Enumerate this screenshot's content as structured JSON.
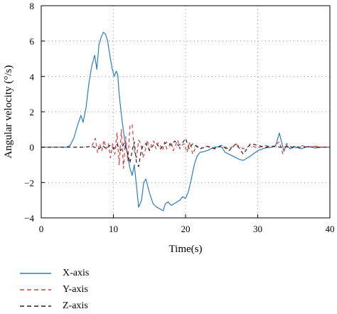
{
  "chart_data": {
    "type": "line",
    "title": "",
    "xlabel": "Time(s)",
    "ylabel": "Angular velocity (°/s)",
    "xlim": [
      0,
      40
    ],
    "ylim": [
      -4,
      8
    ],
    "xticks": [
      0,
      10,
      20,
      30,
      40
    ],
    "yticks": [
      -4,
      -2,
      0,
      2,
      4,
      6,
      8
    ],
    "grid": true,
    "legend_position": "bottom-left, below chart",
    "series": [
      {
        "name": "X-axis",
        "color": "#2e7bc4",
        "style": "solid",
        "x": [
          0,
          3.5,
          4,
          4.5,
          5,
          5.5,
          5.8,
          6.2,
          6.6,
          7,
          7.4,
          7.7,
          8,
          8.3,
          8.6,
          8.9,
          9.2,
          9.5,
          9.8,
          10.1,
          10.4,
          10.6,
          10.8,
          11,
          11.3,
          11.6,
          12,
          12.3,
          12.6,
          12.9,
          13.2,
          13.5,
          13.9,
          14.2,
          14.5,
          15,
          15.5,
          16,
          16.5,
          16.9,
          17.2,
          17.6,
          18,
          18.4,
          18.8,
          19.2,
          19.6,
          20,
          20.4,
          20.8,
          21.2,
          21.6,
          22,
          22.5,
          23,
          23.5,
          24,
          24.5,
          25,
          25.5,
          26,
          26.5,
          27,
          27.5,
          28,
          29,
          30,
          31,
          32,
          32.5,
          33,
          33.3,
          33.6,
          34,
          34.5,
          35,
          36,
          37,
          38,
          39,
          40
        ],
        "y": [
          0,
          0,
          0.1,
          0.5,
          1.2,
          1.8,
          1.4,
          2.2,
          3.6,
          4.6,
          5.2,
          4.4,
          5.8,
          6.2,
          6.5,
          6.4,
          6.0,
          5.2,
          4.5,
          4.0,
          4.3,
          4.1,
          3.0,
          2.2,
          1.2,
          0.3,
          -0.5,
          -1.2,
          -1.6,
          -1.0,
          -2.2,
          -3.4,
          -3.0,
          -2.0,
          -1.8,
          -2.6,
          -3.2,
          -3.4,
          -3.5,
          -3.6,
          -3.2,
          -3.1,
          -3.3,
          -3.2,
          -3.1,
          -3.0,
          -2.8,
          -2.9,
          -2.5,
          -1.8,
          -1.0,
          -0.5,
          -0.3,
          -0.25,
          -0.2,
          -0.1,
          0,
          0.02,
          0,
          -0.3,
          -0.4,
          -0.5,
          -0.6,
          -0.7,
          -0.75,
          -0.5,
          -0.2,
          -0.05,
          0,
          0.1,
          0.8,
          0.3,
          -0.2,
          0.1,
          -0.1,
          0.05,
          -0.1,
          0.05,
          -0.05,
          0,
          0
        ]
      },
      {
        "name": "Y-axis",
        "color": "#d83a3a",
        "style": "dashed",
        "x": [
          0,
          4,
          5,
          6,
          7,
          7.5,
          7.8,
          8.1,
          8.4,
          8.7,
          9,
          9.3,
          9.6,
          9.9,
          10.2,
          10.5,
          10.8,
          11.1,
          11.4,
          11.7,
          12,
          12.3,
          12.6,
          12.9,
          13.2,
          13.5,
          13.8,
          14.1,
          14.4,
          14.7,
          15,
          15.3,
          15.6,
          15.9,
          16.2,
          16.5,
          16.8,
          17.1,
          17.4,
          17.7,
          18,
          18.3,
          18.6,
          18.9,
          19.2,
          19.5,
          19.8,
          20.2,
          20.6,
          21,
          21.5,
          22,
          23,
          24,
          25,
          26,
          27,
          28,
          29,
          30,
          31,
          32,
          33,
          33.5,
          34,
          35,
          36,
          37,
          38,
          39,
          40
        ],
        "y": [
          0,
          0,
          0,
          0,
          0.05,
          0.5,
          -0.3,
          0.2,
          -0.2,
          0.4,
          -0.1,
          0.2,
          -0.6,
          0.2,
          -0.4,
          0.8,
          -1.0,
          1.0,
          -1.2,
          0.6,
          -0.8,
          1.2,
          1.3,
          -0.2,
          -0.6,
          0.4,
          0.2,
          -0.6,
          -0.2,
          0.4,
          -0.2,
          0.2,
          0.35,
          -0.1,
          0.25,
          0.1,
          -0.2,
          0.3,
          -0.1,
          0.05,
          0.3,
          -0.2,
          0.1,
          0.4,
          -0.1,
          0.1,
          0.2,
          -0.3,
          0.3,
          -0.4,
          0.1,
          -0.1,
          0.05,
          -0.05,
          0.1,
          -0.1,
          0.15,
          -0.1,
          0.1,
          -0.05,
          0.1,
          0,
          0.3,
          -0.4,
          0.2,
          -0.1,
          0.1,
          0,
          0.05,
          0,
          0
        ]
      },
      {
        "name": "Z-axis",
        "color": "#222222",
        "style": "dashed",
        "x": [
          0,
          5,
          6,
          7,
          8,
          8.5,
          9,
          9.5,
          10,
          10.5,
          11,
          11.5,
          12,
          12.3,
          12.6,
          12.9,
          13.2,
          13.5,
          13.8,
          14.1,
          14.5,
          15,
          15.5,
          16,
          16.5,
          17,
          17.5,
          18,
          18.5,
          19,
          19.5,
          20,
          20.5,
          21,
          22,
          23,
          24,
          25,
          26,
          27,
          28,
          29,
          30,
          31,
          32,
          33,
          34,
          35,
          36,
          37,
          38,
          39,
          40
        ],
        "y": [
          0,
          0,
          0,
          0.05,
          -0.1,
          0.1,
          -0.1,
          0.1,
          -0.1,
          0.15,
          -0.2,
          0.25,
          -0.4,
          -0.9,
          -0.2,
          0.3,
          -0.9,
          -1.1,
          -0.3,
          0.1,
          0.2,
          -0.2,
          0.1,
          0.2,
          -0.1,
          0.15,
          0.3,
          0.1,
          0.35,
          0.1,
          0.2,
          0.5,
          -0.1,
          0.2,
          -0.1,
          0.05,
          -0.1,
          0.1,
          -0.2,
          0.2,
          -0.4,
          0.2,
          0.1,
          0,
          0.05,
          0,
          0.02,
          0,
          0,
          0.02,
          0,
          0,
          0
        ]
      }
    ]
  }
}
